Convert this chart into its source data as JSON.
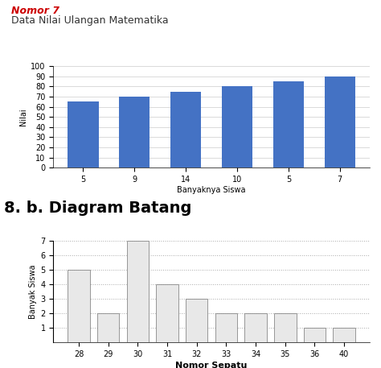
{
  "chart1": {
    "title_nomor": "Nomor 7",
    "title": "Data Nilai Ulangan Matematika",
    "x_labels": [
      "5",
      "9",
      "14",
      "10",
      "5",
      "7"
    ],
    "values": [
      65,
      70,
      75,
      80,
      85,
      90
    ],
    "bar_color": "#4472C4",
    "ylabel": "Nilai",
    "xlabel": "Banyaknya Siswa",
    "ylim": [
      0,
      100
    ],
    "yticks": [
      0,
      10,
      20,
      30,
      40,
      50,
      60,
      70,
      80,
      90,
      100
    ]
  },
  "chart2": {
    "heading": "8. b. Diagram Batang",
    "x_labels": [
      "28",
      "29",
      "30",
      "31",
      "32",
      "33",
      "34",
      "35",
      "36",
      "40"
    ],
    "values": [
      5,
      2,
      7,
      4,
      3,
      2,
      2,
      2,
      1,
      1
    ],
    "bar_color": "#e8e8e8",
    "bar_edgecolor": "#888888",
    "ylabel": "Banyak Siswa",
    "xlabel": "Nomor Sepatu",
    "ylim": [
      0,
      7
    ],
    "yticks": [
      1,
      2,
      3,
      4,
      5,
      6,
      7
    ]
  },
  "nomor7_color": "#cc0000",
  "bg_color": "#ffffff"
}
